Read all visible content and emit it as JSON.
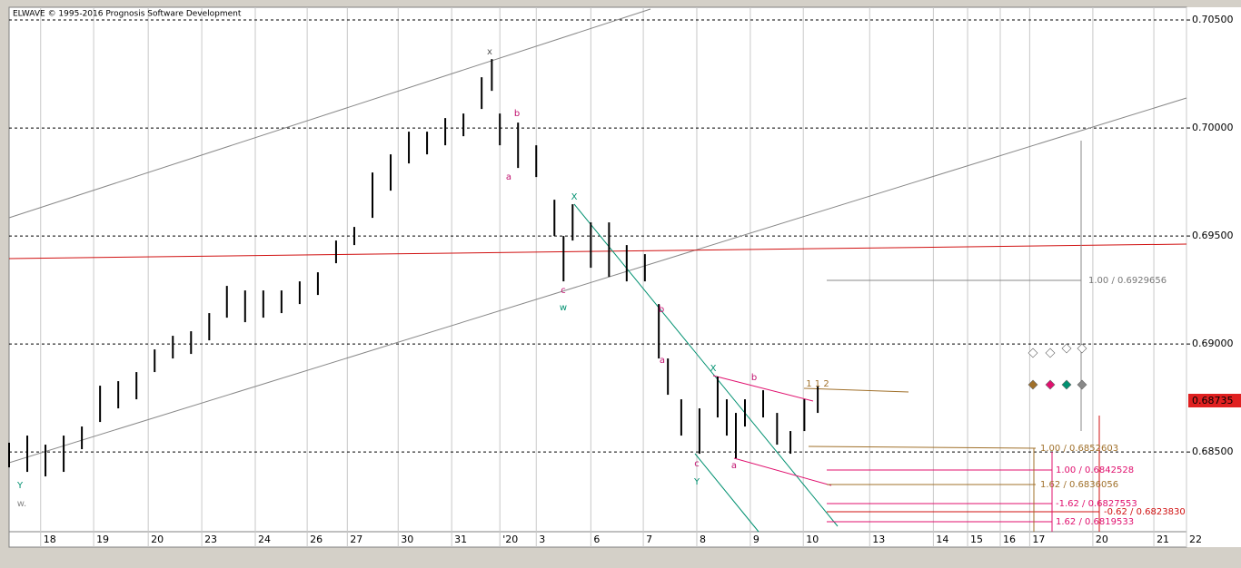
{
  "chart_data": {
    "type": "ohlc",
    "title": "ELWAVE © 1995-2016 Prognosis Software Development",
    "x": [
      0,
      0.34,
      0.68,
      1.02,
      1.36,
      1.7,
      2.04,
      2.38,
      2.72,
      3.06,
      3.4,
      3.74,
      4.07,
      4.41,
      4.75,
      5.09,
      5.43,
      5.77,
      6.11,
      6.45,
      6.79,
      7.13,
      7.47,
      7.81,
      8.15,
      8.49,
      8.83,
      9.02,
      9.17,
      9.51,
      9.85,
      10.19,
      10.36,
      10.53,
      10.87,
      11.21,
      11.54,
      11.88,
      12.14,
      12.31,
      12.56,
      12.9,
      13.24,
      13.41,
      13.58,
      13.75,
      14.09,
      14.35,
      14.6,
      14.86,
      15.11
    ],
    "high": [
      0.68543,
      0.68576,
      0.68534,
      0.68576,
      0.68618,
      0.68807,
      0.68828,
      0.6887,
      0.68975,
      0.69038,
      0.69059,
      0.69143,
      0.69269,
      0.69248,
      0.69248,
      0.69248,
      0.6929,
      0.69332,
      0.69479,
      0.69542,
      0.69794,
      0.69878,
      0.69983,
      0.69983,
      0.70046,
      0.70067,
      0.70235,
      0.70319,
      0.70067,
      0.70025,
      0.6992,
      0.69668,
      0.695,
      0.69647,
      0.69563,
      0.69563,
      0.69458,
      0.69416,
      0.69185,
      0.68933,
      0.68744,
      0.68702,
      0.68849,
      0.68744,
      0.68681,
      0.68744,
      0.68786,
      0.68681,
      0.68597,
      0.68744,
      0.68807
    ],
    "low": [
      0.68429,
      0.68408,
      0.68387,
      0.68408,
      0.68513,
      0.68639,
      0.68702,
      0.68744,
      0.6887,
      0.68933,
      0.68954,
      0.69017,
      0.69122,
      0.69101,
      0.69122,
      0.69143,
      0.69185,
      0.69227,
      0.69374,
      0.69458,
      0.69584,
      0.6971,
      0.69836,
      0.69878,
      0.6992,
      0.69962,
      0.70088,
      0.70172,
      0.6992,
      0.69815,
      0.69773,
      0.695,
      0.6929,
      0.69479,
      0.69353,
      0.69311,
      0.6929,
      0.6929,
      0.68933,
      0.68765,
      0.68576,
      0.68492,
      0.6866,
      0.68576,
      0.68471,
      0.68618,
      0.6866,
      0.68534,
      0.68492,
      0.68597,
      0.68681
    ],
    "color": "#000000",
    "xlim": [
      0,
      22
    ],
    "xticks": [
      {
        "value": 0.59,
        "label": "18"
      },
      {
        "value": 1.58,
        "label": "19"
      },
      {
        "value": 2.6,
        "label": "20"
      },
      {
        "value": 3.6,
        "label": "23"
      },
      {
        "value": 4.6,
        "label": "24"
      },
      {
        "value": 5.57,
        "label": "26"
      },
      {
        "value": 6.32,
        "label": "27"
      },
      {
        "value": 7.27,
        "label": "30"
      },
      {
        "value": 8.27,
        "label": "31"
      },
      {
        "value": 9.17,
        "label": "'20"
      },
      {
        "value": 9.85,
        "label": "3"
      },
      {
        "value": 10.87,
        "label": "6"
      },
      {
        "value": 11.85,
        "label": "7"
      },
      {
        "value": 12.85,
        "label": "8"
      },
      {
        "value": 13.85,
        "label": "9"
      },
      {
        "value": 14.84,
        "label": "10"
      },
      {
        "value": 16.08,
        "label": "13"
      },
      {
        "value": 17.27,
        "label": "14"
      },
      {
        "value": 17.91,
        "label": "15"
      },
      {
        "value": 18.52,
        "label": "16"
      },
      {
        "value": 19.07,
        "label": "17"
      },
      {
        "value": 20.25,
        "label": "20"
      },
      {
        "value": 21.39,
        "label": "21"
      },
      {
        "value": 22,
        "label": "22"
      }
    ],
    "ylim": [
      0.68131,
      0.70559
    ],
    "yticks": [
      {
        "value": 0.705,
        "label": "0.70500"
      },
      {
        "value": 0.7,
        "label": "0.70000"
      },
      {
        "value": 0.695,
        "label": "0.69500"
      },
      {
        "value": 0.69,
        "label": "0.69000"
      },
      {
        "value": 0.685,
        "label": "0.68500"
      }
    ],
    "grid": true,
    "last_price": "0.68735",
    "annotations": [
      "x",
      "b",
      "a",
      "X",
      "c",
      "w",
      "b",
      "a",
      "X",
      "b",
      "c",
      "Y",
      "a",
      "1 1 2",
      "Y",
      "w."
    ],
    "fib_labels": [
      "1.00 / 0.6929656",
      "1.00 / 0.6852603",
      "1.00 / 0.6842528",
      "1.62 / 0.6836056",
      "-1.62 / 0.6827553",
      "-0.62 / 0.6823830",
      "1.62 / 0.6819533"
    ]
  }
}
